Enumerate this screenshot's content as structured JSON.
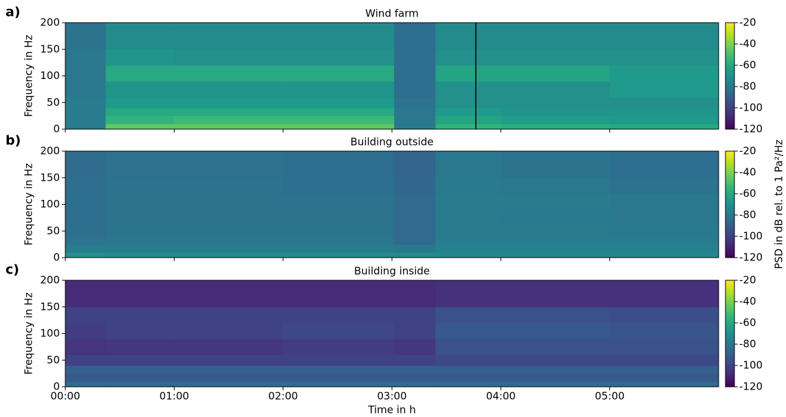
{
  "chart_data": [
    {
      "type": "heatmap",
      "panel_label": "a)",
      "title": "Wind farm",
      "ylabel": "Frequency in Hz",
      "colormap": "viridis",
      "x_bins": [
        0,
        0.37,
        1,
        2,
        3.02,
        3.4,
        4,
        5,
        6
      ],
      "y_bins": [
        0,
        10,
        25,
        40,
        60,
        90,
        120,
        150,
        200
      ],
      "z": [
        [
          -78,
          -45,
          -45,
          -45,
          -80,
          -55,
          -58,
          -60
        ],
        [
          -78,
          -55,
          -52,
          -52,
          -80,
          -62,
          -64,
          -66
        ],
        [
          -78,
          -60,
          -60,
          -60,
          -80,
          -66,
          -68,
          -68
        ],
        [
          -78,
          -66,
          -66,
          -66,
          -82,
          -70,
          -70,
          -70
        ],
        [
          -80,
          -68,
          -68,
          -68,
          -84,
          -70,
          -70,
          -66
        ],
        [
          -80,
          -60,
          -60,
          -60,
          -84,
          -62,
          -62,
          -66
        ],
        [
          -80,
          -68,
          -70,
          -70,
          -84,
          -70,
          -70,
          -70
        ],
        [
          -82,
          -72,
          -72,
          -72,
          -84,
          -72,
          -72,
          -72
        ]
      ],
      "vline": 3.77,
      "xlim": [
        0,
        6
      ],
      "ylim": [
        0,
        200
      ],
      "xticks": [
        0,
        1,
        2,
        3,
        4,
        5
      ],
      "yticks": [
        0,
        50,
        100,
        150,
        200
      ],
      "clim": [
        -120,
        -20
      ],
      "cticks": [
        -20,
        -40,
        -60,
        -80,
        -100,
        -120
      ]
    },
    {
      "type": "heatmap",
      "panel_label": "b)",
      "title": "Building outside",
      "ylabel": "Frequency in Hz",
      "colormap": "viridis",
      "colorbar_label": "PSD in dB rel. to 1 Pa²/Hz",
      "x_bins": [
        0,
        0.37,
        1,
        2,
        3.02,
        3.4,
        4,
        5,
        6
      ],
      "y_bins": [
        0,
        10,
        25,
        40,
        60,
        90,
        120,
        150,
        200
      ],
      "z": [
        [
          -70,
          -72,
          -72,
          -72,
          -72,
          -74,
          -74,
          -74
        ],
        [
          -78,
          -78,
          -78,
          -78,
          -80,
          -76,
          -76,
          -76
        ],
        [
          -82,
          -80,
          -80,
          -80,
          -86,
          -78,
          -78,
          -78
        ],
        [
          -84,
          -82,
          -82,
          -82,
          -86,
          -78,
          -78,
          -79
        ],
        [
          -84,
          -82,
          -82,
          -82,
          -86,
          -78,
          -79,
          -80
        ],
        [
          -84,
          -82,
          -82,
          -82,
          -86,
          -78,
          -78,
          -80
        ],
        [
          -84,
          -82,
          -82,
          -84,
          -87,
          -79,
          -80,
          -82
        ],
        [
          -85,
          -83,
          -83,
          -84,
          -88,
          -80,
          -82,
          -84
        ]
      ],
      "xlim": [
        0,
        6
      ],
      "ylim": [
        0,
        200
      ],
      "xticks": [
        0,
        1,
        2,
        3,
        4,
        5
      ],
      "yticks": [
        0,
        50,
        100,
        150,
        200
      ],
      "clim": [
        -120,
        -20
      ],
      "cticks": [
        -20,
        -40,
        -60,
        -80,
        -100,
        -120
      ]
    },
    {
      "type": "heatmap",
      "panel_label": "c)",
      "title": "Building inside",
      "ylabel": "Frequency in Hz",
      "xlabel": "Time in h",
      "colormap": "viridis",
      "x_bins": [
        0,
        0.37,
        1,
        2,
        3.02,
        3.4,
        4,
        5,
        6
      ],
      "y_bins": [
        0,
        10,
        25,
        40,
        60,
        90,
        120,
        150,
        200
      ],
      "z": [
        [
          -85,
          -85,
          -85,
          -85,
          -85,
          -85,
          -85,
          -85
        ],
        [
          -92,
          -92,
          -92,
          -92,
          -92,
          -92,
          -92,
          -92
        ],
        [
          -90,
          -90,
          -90,
          -90,
          -90,
          -90,
          -90,
          -90
        ],
        [
          -100,
          -100,
          -100,
          -100,
          -100,
          -98,
          -98,
          -98
        ],
        [
          -105,
          -104,
          -104,
          -102,
          -104,
          -95,
          -95,
          -95
        ],
        [
          -102,
          -100,
          -100,
          -98,
          -100,
          -92,
          -92,
          -93
        ],
        [
          -100,
          -100,
          -100,
          -100,
          -100,
          -95,
          -95,
          -96
        ],
        [
          -108,
          -108,
          -108,
          -108,
          -108,
          -106,
          -106,
          -106
        ]
      ],
      "xlim": [
        0,
        6
      ],
      "ylim": [
        0,
        200
      ],
      "xticks": [
        {
          "value": 0,
          "label": "00:00"
        },
        {
          "value": 1,
          "label": "01:00"
        },
        {
          "value": 2,
          "label": "02:00"
        },
        {
          "value": 3,
          "label": "03:00"
        },
        {
          "value": 4,
          "label": "04:00"
        },
        {
          "value": 5,
          "label": "05:00"
        }
      ],
      "yticks": [
        0,
        50,
        100,
        150,
        200
      ],
      "clim": [
        -120,
        -20
      ],
      "cticks": [
        -20,
        -40,
        -60,
        -80,
        -100,
        -120
      ]
    }
  ]
}
